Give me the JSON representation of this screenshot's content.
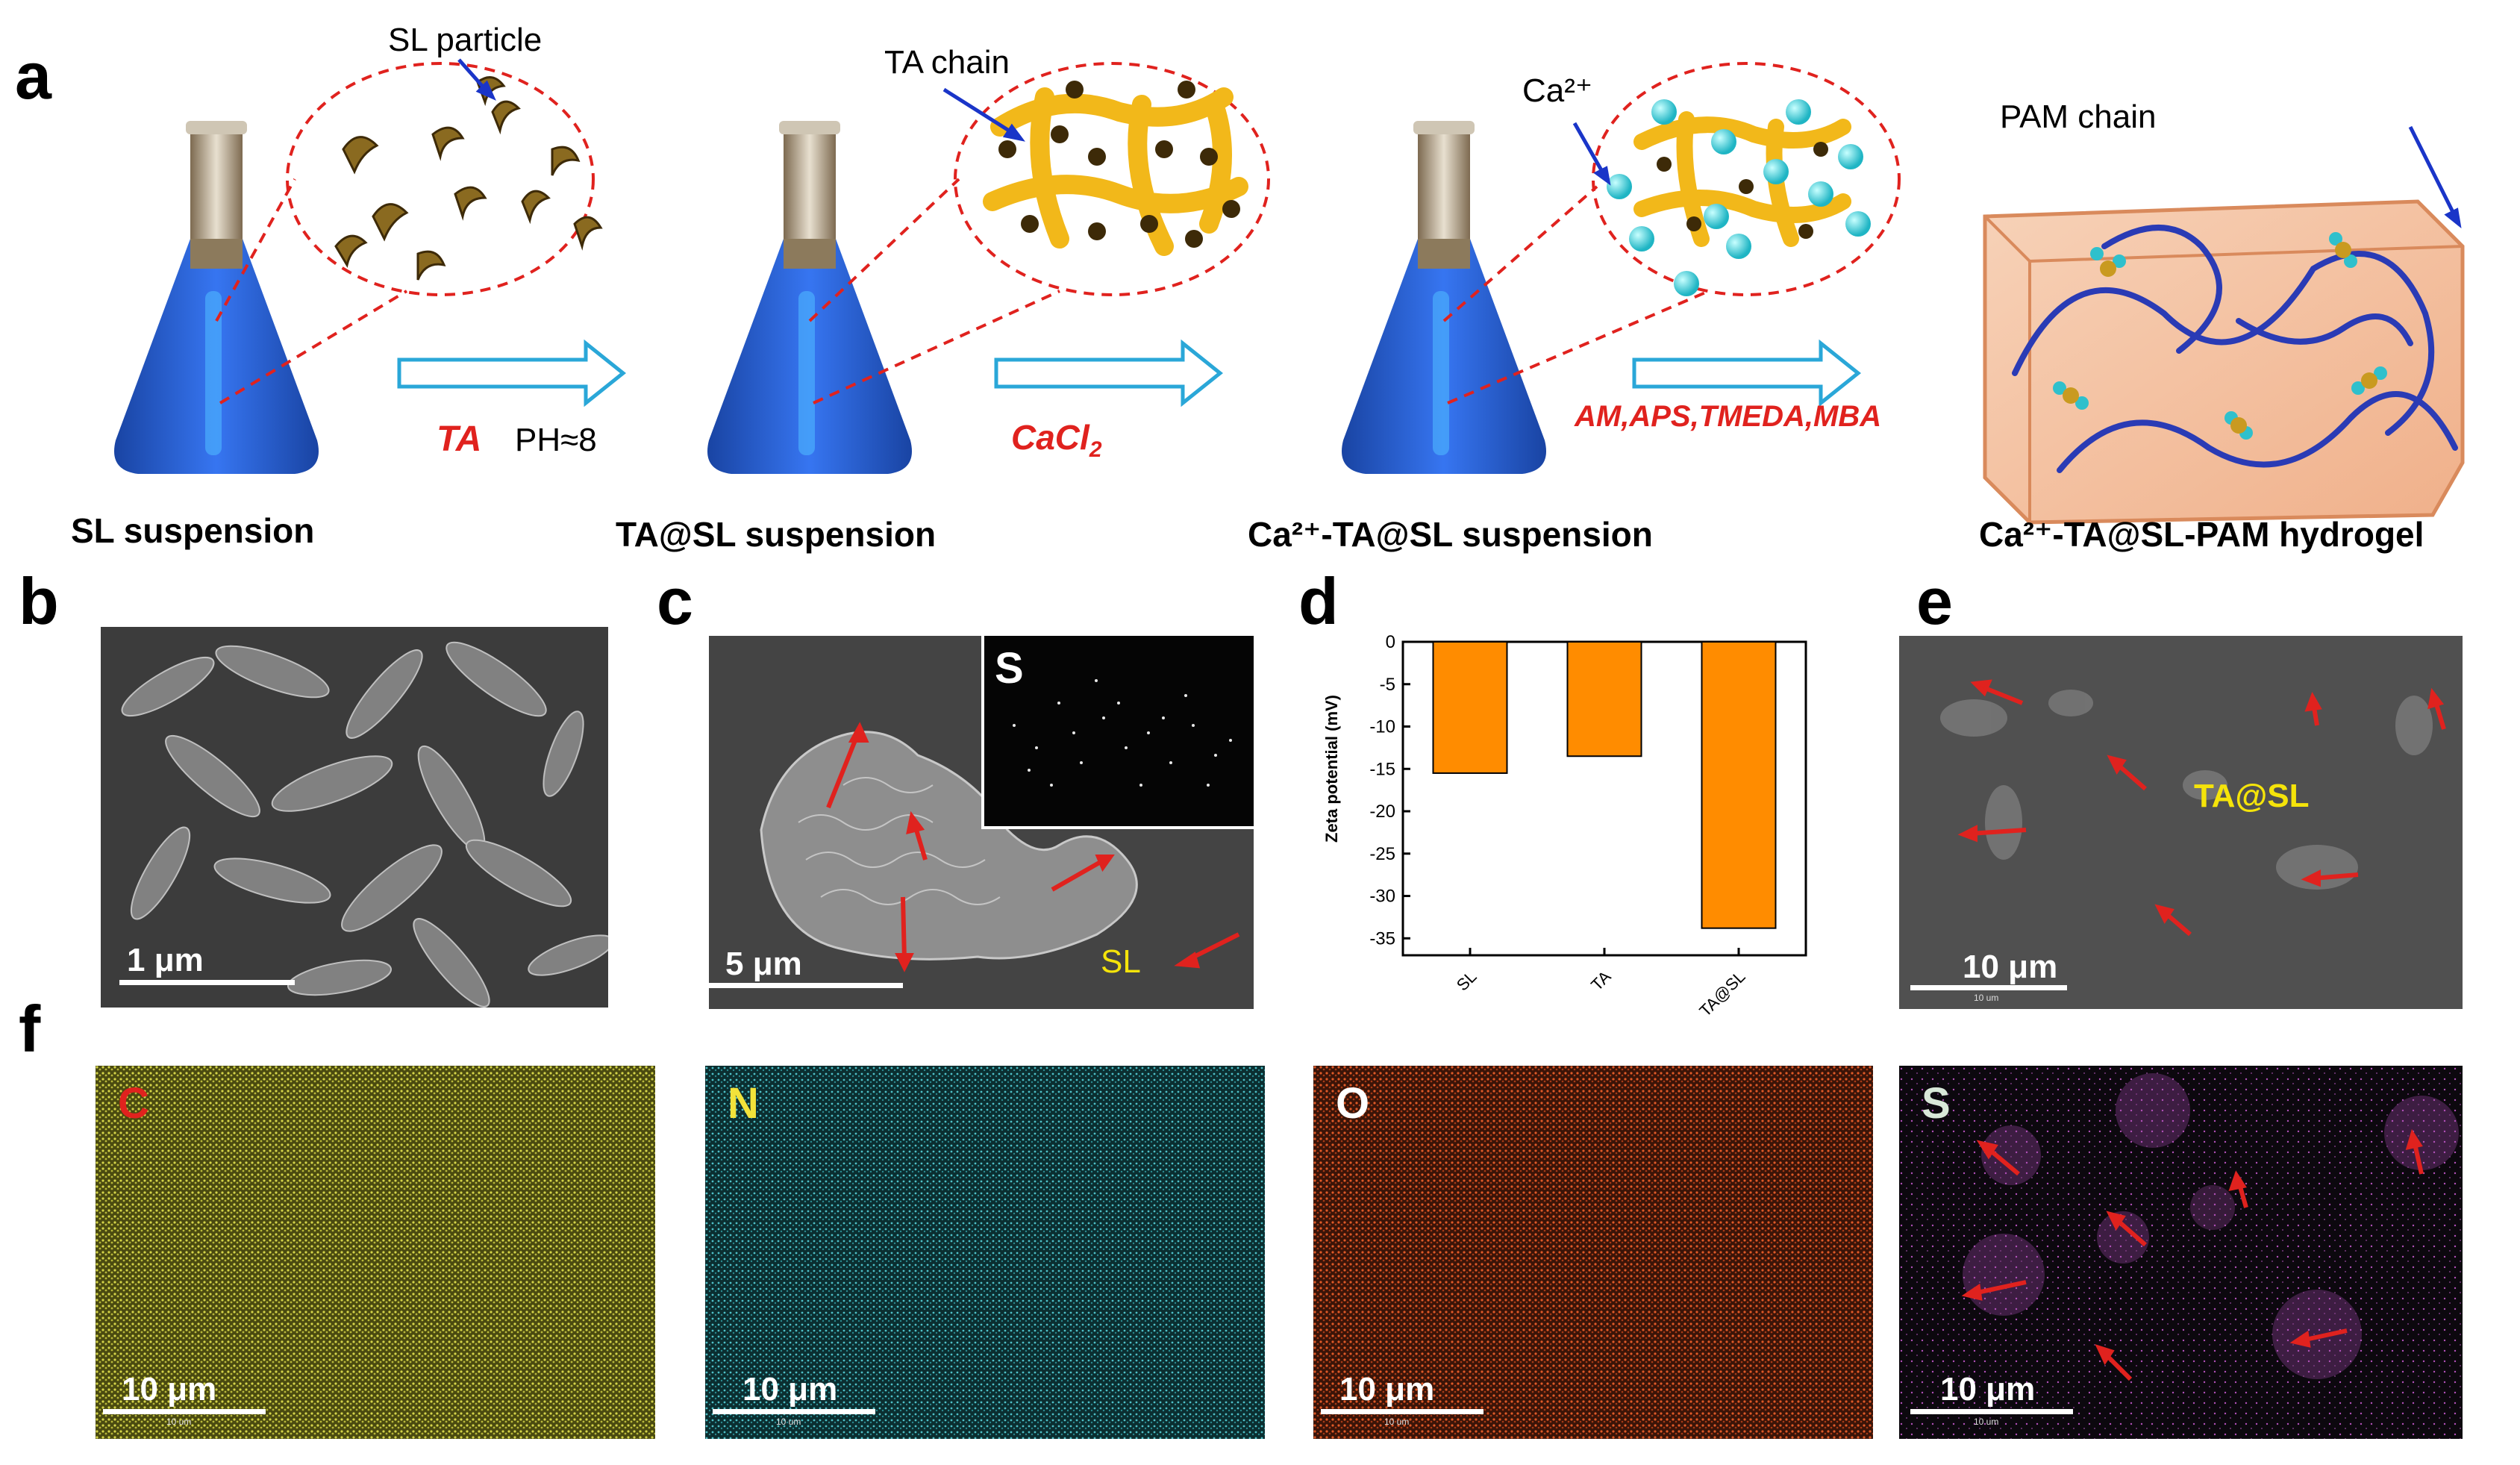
{
  "panels": {
    "a": "a",
    "b": "b",
    "c": "c",
    "d": "d",
    "e": "e",
    "f": "f"
  },
  "schematic": {
    "stages": [
      {
        "label": "SL suspension",
        "inset_label": "SL particle"
      },
      {
        "label": "TA@SL suspension",
        "inset_label": "TA chain"
      },
      {
        "label": "Ca²⁺-TA@SL suspension",
        "inset_label": "Ca²⁺"
      },
      {
        "label": "Ca²⁺-TA@SL-PAM hydrogel",
        "inset_label": "PAM chain"
      }
    ],
    "step1_reagent": "TA",
    "step1_condition": "PH≈8",
    "step2_reagent": "CaCl",
    "step2_reagent_sub": "2",
    "step3_reagent": "AM,APS,TMEDA,MBA"
  },
  "sem_b": {
    "scale": "1 μm"
  },
  "sem_c": {
    "scale": "5 μm",
    "inset_element": "S",
    "label": "SL"
  },
  "sem_e": {
    "scale": "10 μm",
    "label": "TA@SL",
    "micro_text": "10 um"
  },
  "maps_f": [
    {
      "element": "C",
      "scale": "10 μm",
      "micro_text": "10 um",
      "color": "#b8b83a",
      "letter_color": "#e0221e"
    },
    {
      "element": "N",
      "scale": "10 μm",
      "micro_text": "10 um",
      "color": "#3aa9b0",
      "letter_color": "#f2e23a"
    },
    {
      "element": "O",
      "scale": "10 μm",
      "micro_text": "10 um",
      "color": "#c4441e",
      "letter_color": "#ffffff"
    },
    {
      "element": "S",
      "scale": "10 μm",
      "micro_text": "10 um",
      "color": "#c05ac8",
      "letter_color": "#d8e8d8"
    }
  ],
  "colors": {
    "arrow_red": "#e0221e",
    "label_yellow": "#f5e40a",
    "bar_orange": "#ff8c00",
    "flask_blue": "#1a4fc4"
  },
  "chart_data": {
    "type": "bar",
    "categories": [
      "SL",
      "TA",
      "TA@SL"
    ],
    "values": [
      -15.5,
      -13.5,
      -33.8
    ],
    "ylabel": "Zeta potential (mV)",
    "ylim": [
      -37,
      0
    ],
    "yticks": [
      0,
      -5,
      -10,
      -15,
      -20,
      -25,
      -30,
      -35
    ],
    "ytick_labels": [
      "0",
      "-5",
      "-10",
      "-15",
      "-20",
      "-25",
      "-30",
      "-35"
    ],
    "color": "#ff8c00"
  }
}
